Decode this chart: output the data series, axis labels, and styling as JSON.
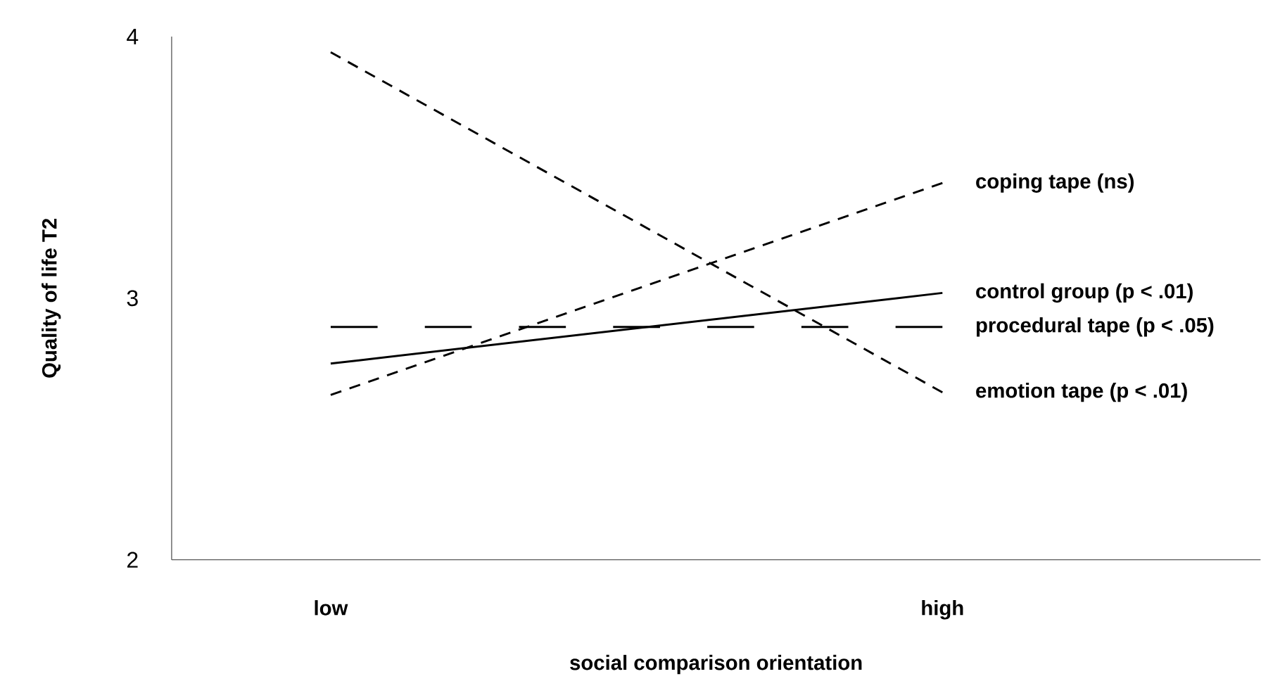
{
  "chart_data": {
    "type": "line",
    "xlabel": "social comparison orientation",
    "ylabel": "Quality of life T2",
    "categories": [
      "low",
      "high"
    ],
    "series": [
      {
        "name": "coping tape (ns)",
        "color": "#000000",
        "line_style": "dotted",
        "values": [
          2.63,
          3.44
        ]
      },
      {
        "name": "control group (p < .01)",
        "color": "#000000",
        "line_style": "solid",
        "values": [
          2.75,
          3.02
        ]
      },
      {
        "name": "procedural tape (p < .05)",
        "color": "#000000",
        "line_style": "dashed",
        "values": [
          2.89,
          2.89
        ]
      },
      {
        "name": "emotion tape (p < .01)",
        "color": "#000000",
        "line_style": "dotted",
        "values": [
          3.94,
          2.64
        ]
      }
    ],
    "ylim": [
      2,
      4
    ],
    "yticks": [
      2,
      3,
      4
    ],
    "grid": false,
    "legend": false,
    "marker": "none"
  }
}
